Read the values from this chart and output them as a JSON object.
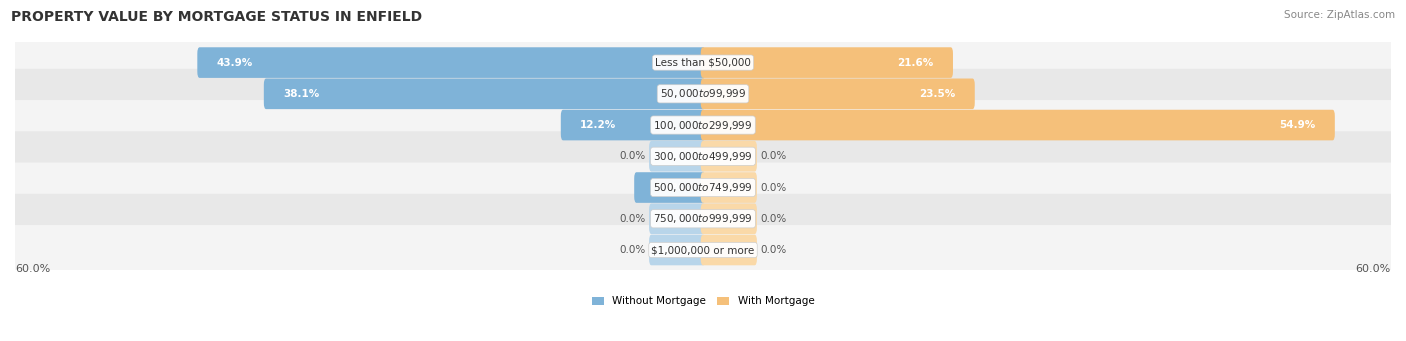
{
  "title": "PROPERTY VALUE BY MORTGAGE STATUS IN ENFIELD",
  "source": "Source: ZipAtlas.com",
  "categories": [
    "Less than $50,000",
    "$50,000 to $99,999",
    "$100,000 to $299,999",
    "$300,000 to $499,999",
    "$500,000 to $749,999",
    "$750,000 to $999,999",
    "$1,000,000 or more"
  ],
  "without_mortgage": [
    43.9,
    38.1,
    12.2,
    0.0,
    5.8,
    0.0,
    0.0
  ],
  "with_mortgage": [
    21.6,
    23.5,
    54.9,
    0.0,
    0.0,
    0.0,
    0.0
  ],
  "color_without": "#7fb3d8",
  "color_with": "#f5c07a",
  "color_without_stub": "#b8d5ea",
  "color_with_stub": "#fad9a8",
  "bg_row_light": "#f4f4f4",
  "bg_row_dark": "#e8e8e8",
  "axis_limit": 60.0,
  "stub_size": 4.5,
  "legend_label_without": "Without Mortgage",
  "legend_label_with": "With Mortgage",
  "title_fontsize": 10,
  "source_fontsize": 7.5,
  "label_fontsize": 7.5,
  "category_fontsize": 7.5,
  "axis_label_fontsize": 8
}
